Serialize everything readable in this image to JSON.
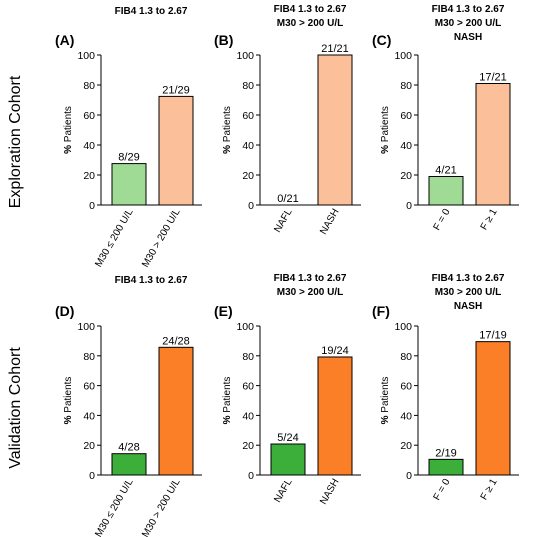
{
  "rows": [
    {
      "label": "Exploration Cohort"
    },
    {
      "label": "Validation Cohort"
    }
  ],
  "colors": {
    "exploration_green": "#9fdb95",
    "exploration_orange": "#fbbf99",
    "validation_green": "#3cae3a",
    "validation_orange": "#fb7f26",
    "bar_stroke": "#000000"
  },
  "chart_data": [
    {
      "panel": "(A)",
      "title_lines": [
        "FIB4 1.3 to 2.67"
      ],
      "type": "bar",
      "categories": [
        "M30 ≤ 200 U/L",
        "M30 > 200 U/L"
      ],
      "values": [
        27.6,
        72.4
      ],
      "value_labels": [
        "8/29",
        "21/29"
      ],
      "ylabel": "% Patients",
      "ylim": [
        0,
        100
      ],
      "yticks": [
        "0",
        "20",
        "40",
        "60",
        "80",
        "100"
      ],
      "colors": [
        "#9fdb95",
        "#fbbf99"
      ],
      "row": 0
    },
    {
      "panel": "(B)",
      "title_lines": [
        "FIB4 1.3 to 2.67",
        "M30 > 200 U/L"
      ],
      "type": "bar",
      "categories": [
        "NAFL",
        "NASH"
      ],
      "values": [
        0,
        100
      ],
      "value_labels": [
        "0/21",
        "21/21"
      ],
      "ylabel": "% Patients",
      "ylim": [
        0,
        100
      ],
      "yticks": [
        "0",
        "20",
        "40",
        "60",
        "80",
        "100"
      ],
      "colors": [
        "#9fdb95",
        "#fbbf99"
      ],
      "row": 0
    },
    {
      "panel": "(C)",
      "title_lines": [
        "FIB4 1.3 to 2.67",
        "M30 > 200 U/L",
        "NASH"
      ],
      "type": "bar",
      "categories": [
        "F = 0",
        "F ≥ 1"
      ],
      "values": [
        19.0,
        81.0
      ],
      "value_labels": [
        "4/21",
        "17/21"
      ],
      "ylabel": "% Patients",
      "ylim": [
        0,
        100
      ],
      "yticks": [
        "0",
        "20",
        "40",
        "60",
        "80",
        "100"
      ],
      "colors": [
        "#9fdb95",
        "#fbbf99"
      ],
      "row": 0
    },
    {
      "panel": "(D)",
      "title_lines": [
        "FIB4 1.3 to 2.67"
      ],
      "type": "bar",
      "categories": [
        "M30 ≤ 200 U/L",
        "M30 > 200 U/L"
      ],
      "values": [
        14.3,
        85.7
      ],
      "value_labels": [
        "4/28",
        "24/28"
      ],
      "ylabel": "% Patients",
      "ylim": [
        0,
        100
      ],
      "yticks": [
        "0",
        "20",
        "40",
        "60",
        "80",
        "100"
      ],
      "colors": [
        "#3cae3a",
        "#fb7f26"
      ],
      "row": 1
    },
    {
      "panel": "(E)",
      "title_lines": [
        "FIB4 1.3 to 2.67",
        "M30 > 200 U/L"
      ],
      "type": "bar",
      "categories": [
        "NAFL",
        "NASH"
      ],
      "values": [
        20.8,
        79.2
      ],
      "value_labels": [
        "5/24",
        "19/24"
      ],
      "ylabel": "% Patients",
      "ylim": [
        0,
        100
      ],
      "yticks": [
        "0",
        "20",
        "40",
        "60",
        "80",
        "100"
      ],
      "colors": [
        "#3cae3a",
        "#fb7f26"
      ],
      "row": 1
    },
    {
      "panel": "(F)",
      "title_lines": [
        "FIB4 1.3 to 2.67",
        "M30 > 200 U/L",
        "NASH"
      ],
      "type": "bar",
      "categories": [
        "F = 0",
        "F ≥ 1"
      ],
      "values": [
        10.5,
        89.5
      ],
      "value_labels": [
        "2/19",
        "17/19"
      ],
      "ylabel": "% Patients",
      "ylim": [
        0,
        100
      ],
      "yticks": [
        "0",
        "20",
        "40",
        "60",
        "80",
        "100"
      ],
      "colors": [
        "#3cae3a",
        "#fb7f26"
      ],
      "row": 1
    }
  ]
}
